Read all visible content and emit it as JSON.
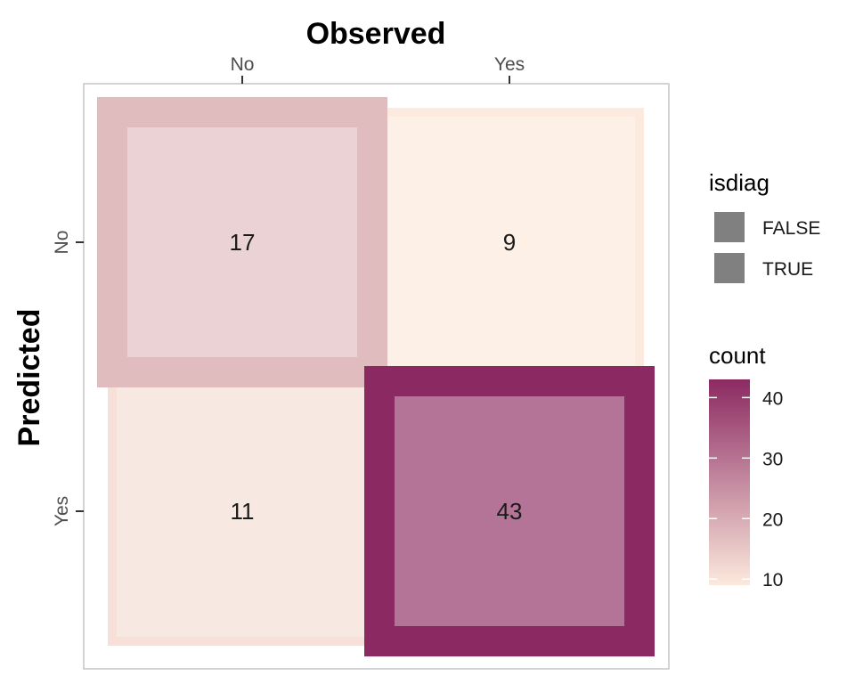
{
  "chart_data": {
    "type": "heatmap",
    "title": "",
    "xlabel": "Observed",
    "ylabel": "Predicted",
    "x_categories": [
      "No",
      "Yes"
    ],
    "y_categories": [
      "No",
      "Yes"
    ],
    "x_axis_position": "top",
    "cells": [
      {
        "observed": "No",
        "predicted": "No",
        "count": 17,
        "isdiag": true
      },
      {
        "observed": "Yes",
        "predicted": "No",
        "count": 9,
        "isdiag": false
      },
      {
        "observed": "No",
        "predicted": "Yes",
        "count": 11,
        "isdiag": false
      },
      {
        "observed": "Yes",
        "predicted": "Yes",
        "count": 43,
        "isdiag": true
      }
    ],
    "legend": {
      "isdiag": {
        "title": "isdiag",
        "entries": [
          "FALSE",
          "TRUE"
        ],
        "key_color": "#808080"
      },
      "count": {
        "title": "count",
        "range": [
          9,
          43
        ],
        "ticks": [
          10,
          20,
          30,
          40
        ],
        "color_low": "#fce9dc",
        "color_high": "#8b2a62"
      }
    },
    "grid": false,
    "legend_placement": "right"
  }
}
